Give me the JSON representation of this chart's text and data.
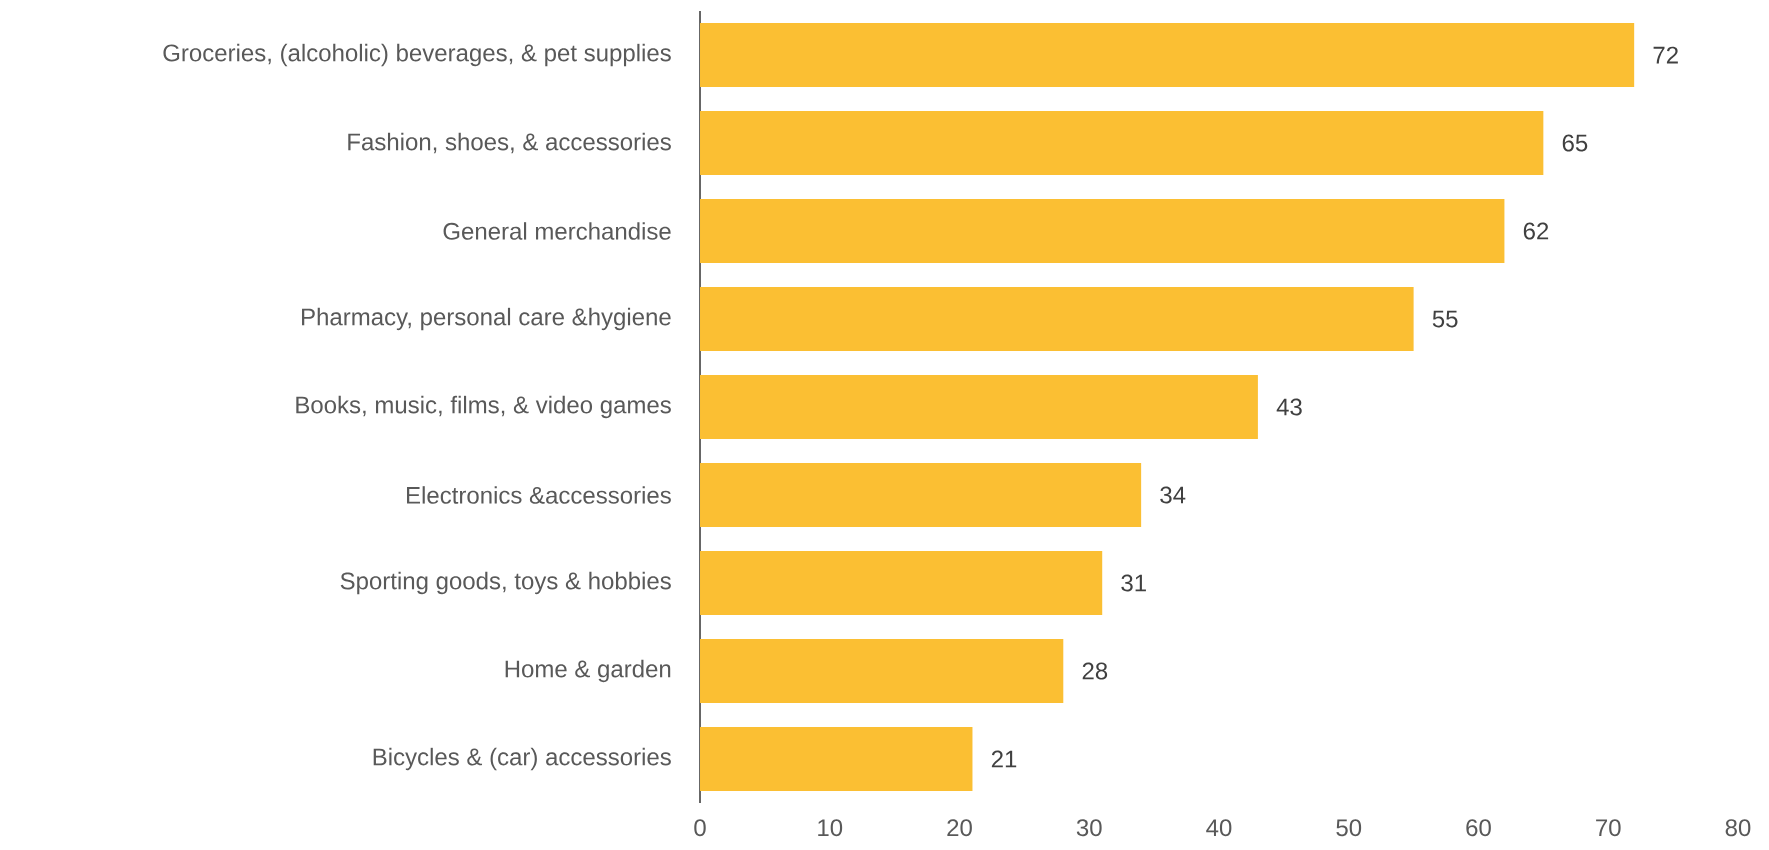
{
  "chart_data": {
    "type": "bar",
    "orientation": "horizontal",
    "categories": [
      "Groceries, (alcoholic) beverages, & pet supplies",
      "Fashion, shoes, & accessories",
      "General merchandise",
      "Pharmacy, personal care &hygiene",
      "Books, music, films, & video games",
      "Electronics &accessories",
      "Sporting goods, toys & hobbies",
      "Home & garden",
      "Bicycles & (car) accessories"
    ],
    "values": [
      72,
      65,
      62,
      55,
      43,
      34,
      31,
      28,
      21
    ],
    "color": "#fbbf33",
    "xlim": [
      0,
      80
    ],
    "xticks": [
      0,
      10,
      20,
      30,
      40,
      50,
      60,
      70,
      80
    ],
    "data_labels": true,
    "grid": false
  }
}
